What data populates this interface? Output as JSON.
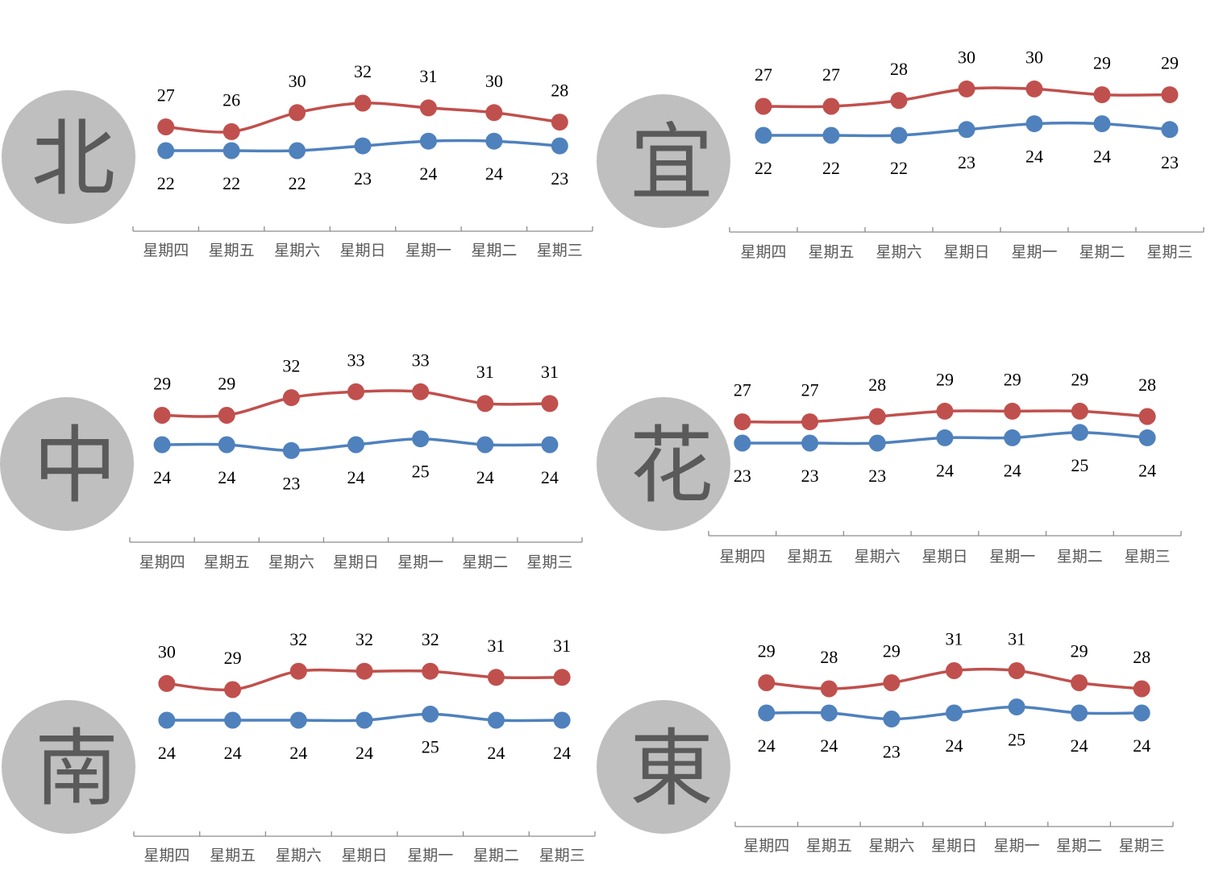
{
  "colors": {
    "high": "#c0504d",
    "low": "#4f81bd",
    "region_circle": "#bfbfbf",
    "region_char": "#5a5a5a",
    "axis": "#8c8c8c",
    "tick_label": "#595959"
  },
  "chart_data": [
    {
      "type": "line",
      "region": "北",
      "categories": [
        "星期四",
        "星期五",
        "星期六",
        "星期日",
        "星期一",
        "星期二",
        "星期三"
      ],
      "series": [
        {
          "values": [
            27,
            26,
            30,
            32,
            31,
            30,
            28
          ]
        },
        {
          "values": [
            22,
            22,
            22,
            23,
            24,
            24,
            23
          ]
        }
      ]
    },
    {
      "type": "line",
      "region": "宜",
      "categories": [
        "星期四",
        "星期五",
        "星期六",
        "星期日",
        "星期一",
        "星期二",
        "星期三"
      ],
      "series": [
        {
          "values": [
            27,
            27,
            28,
            30,
            30,
            29,
            29
          ]
        },
        {
          "values": [
            22,
            22,
            22,
            23,
            24,
            24,
            23
          ]
        }
      ]
    },
    {
      "type": "line",
      "region": "中",
      "categories": [
        "星期四",
        "星期五",
        "星期六",
        "星期日",
        "星期一",
        "星期二",
        "星期三"
      ],
      "series": [
        {
          "values": [
            29,
            29,
            32,
            33,
            33,
            31,
            31
          ]
        },
        {
          "values": [
            24,
            24,
            23,
            24,
            25,
            24,
            24
          ]
        }
      ]
    },
    {
      "type": "line",
      "region": "花",
      "categories": [
        "星期四",
        "星期五",
        "星期六",
        "星期日",
        "星期一",
        "星期二",
        "星期三"
      ],
      "series": [
        {
          "values": [
            27,
            27,
            28,
            29,
            29,
            29,
            28
          ]
        },
        {
          "values": [
            23,
            23,
            23,
            24,
            24,
            25,
            24
          ]
        }
      ]
    },
    {
      "type": "line",
      "region": "南",
      "categories": [
        "星期四",
        "星期五",
        "星期六",
        "星期日",
        "星期一",
        "星期二",
        "星期三"
      ],
      "series": [
        {
          "values": [
            30,
            29,
            32,
            32,
            32,
            31,
            31
          ]
        },
        {
          "values": [
            24,
            24,
            24,
            24,
            25,
            24,
            24
          ]
        }
      ]
    },
    {
      "type": "line",
      "region": "東",
      "categories": [
        "星期四",
        "星期五",
        "星期六",
        "星期日",
        "星期一",
        "星期二",
        "星期三"
      ],
      "series": [
        {
          "values": [
            29,
            28,
            29,
            31,
            31,
            29,
            28
          ]
        },
        {
          "values": [
            24,
            24,
            23,
            24,
            25,
            24,
            24
          ]
        }
      ]
    }
  ]
}
